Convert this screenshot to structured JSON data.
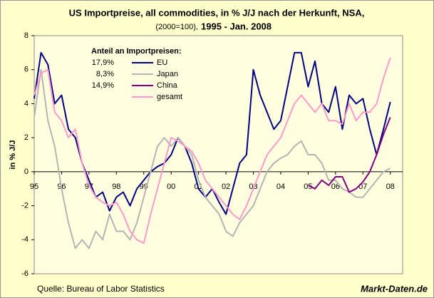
{
  "chart_data": {
    "type": "line",
    "title": "US Importpreise, all commodities, in % J/J nach der Herkunft, NSA,",
    "subtitle": [
      "(2000=100),",
      "1995 - Jan. 2008"
    ],
    "y_label": "in % J/J",
    "legend_title": "Anteil an Importpreisen:",
    "source": "Quelle: Bureau of Labor Statistics",
    "brand": "Markt-Daten.de",
    "x": [
      1995,
      1995.25,
      1995.5,
      1995.75,
      1996,
      1996.25,
      1996.5,
      1996.75,
      1997,
      1997.25,
      1997.5,
      1997.75,
      1998,
      1998.25,
      1998.5,
      1998.75,
      1999,
      1999.25,
      1999.5,
      1999.75,
      2000,
      2000.25,
      2000.5,
      2000.75,
      2001,
      2001.25,
      2001.5,
      2001.75,
      2002,
      2002.25,
      2002.5,
      2002.75,
      2003,
      2003.25,
      2003.5,
      2003.75,
      2004,
      2004.25,
      2004.5,
      2004.75,
      2005,
      2005.25,
      2005.5,
      2005.75,
      2006,
      2006.25,
      2006.5,
      2006.75,
      2007,
      2007.25,
      2007.5,
      2007.75,
      2008
    ],
    "series": [
      {
        "name": "EU",
        "share": "17,9%",
        "color": "#000080",
        "values": [
          4.3,
          7.0,
          6.3,
          4.0,
          4.5,
          2.5,
          2.0,
          0.5,
          -0.5,
          -1.5,
          -1.2,
          -2.3,
          -1.5,
          -1.2,
          -2.0,
          -1.0,
          -0.5,
          0.0,
          0.3,
          0.5,
          1.0,
          2.0,
          1.5,
          0.5,
          -1.0,
          -1.5,
          -1.0,
          -1.8,
          -2.5,
          -1.0,
          0.5,
          1.0,
          6.0,
          4.5,
          3.5,
          2.5,
          3.0,
          5.0,
          7.0,
          7.0,
          5.0,
          6.5,
          4.0,
          3.5,
          5.0,
          2.5,
          4.5,
          4.0,
          4.3,
          2.5,
          1.0,
          2.5,
          4.1
        ]
      },
      {
        "name": "Japan",
        "share": "8,3%",
        "color": "#b4b4b4",
        "values": [
          3.2,
          6.0,
          3.0,
          1.5,
          -1.0,
          -3.0,
          -4.5,
          -4.0,
          -4.5,
          -3.5,
          -4.0,
          -2.5,
          -3.5,
          -3.5,
          -4.0,
          -3.0,
          -1.5,
          0.0,
          1.5,
          2.0,
          1.5,
          2.0,
          1.5,
          1.0,
          -0.5,
          -1.5,
          -2.0,
          -2.5,
          -3.5,
          -3.8,
          -3.0,
          -2.5,
          -2.0,
          -1.0,
          0.0,
          0.5,
          0.8,
          1.0,
          1.5,
          1.8,
          1.0,
          1.0,
          0.5,
          -0.5,
          -0.5,
          -1.0,
          -1.2,
          -1.5,
          -1.5,
          -1.0,
          -0.5,
          0.0,
          0.2
        ]
      },
      {
        "name": "China",
        "share": "14,9%",
        "color": "#800080",
        "values": [
          null,
          null,
          null,
          null,
          null,
          null,
          null,
          null,
          null,
          null,
          null,
          null,
          null,
          null,
          null,
          null,
          null,
          null,
          null,
          null,
          null,
          null,
          null,
          null,
          null,
          null,
          null,
          null,
          null,
          null,
          null,
          null,
          null,
          null,
          null,
          null,
          null,
          null,
          null,
          null,
          -0.8,
          -1.0,
          -0.5,
          -0.8,
          -0.3,
          -0.3,
          -1.2,
          -1.0,
          -0.6,
          0.0,
          1.0,
          2.2,
          3.2
        ]
      },
      {
        "name": "gesamt",
        "color": "#ff99cc",
        "values": [
          4.5,
          5.8,
          6.0,
          3.5,
          3.0,
          2.0,
          2.5,
          0.5,
          -0.8,
          -1.5,
          -1.8,
          -2.0,
          -1.8,
          -2.5,
          -3.5,
          -4.0,
          -4.2,
          -2.5,
          -1.0,
          0.5,
          2.0,
          1.8,
          1.5,
          1.2,
          0.5,
          -0.5,
          -1.0,
          -1.5,
          -2.0,
          -2.5,
          -2.8,
          -2.0,
          -1.0,
          0.0,
          1.0,
          1.5,
          2.0,
          3.0,
          4.0,
          4.5,
          4.0,
          3.5,
          4.0,
          3.0,
          3.0,
          2.8,
          4.0,
          3.0,
          3.5,
          3.5,
          4.0,
          5.5,
          6.7
        ]
      }
    ],
    "xlim": [
      1995,
      2008.45
    ],
    "xticks": [
      {
        "value": 1995,
        "label": "95"
      },
      {
        "value": 1996,
        "label": "96"
      },
      {
        "value": 1997,
        "label": "97"
      },
      {
        "value": 1998,
        "label": "98"
      },
      {
        "value": 1999,
        "label": "99"
      },
      {
        "value": 2000,
        "label": "00"
      },
      {
        "value": 2001,
        "label": "01"
      },
      {
        "value": 2002,
        "label": "02"
      },
      {
        "value": 2003,
        "label": "03"
      },
      {
        "value": 2004,
        "label": "04"
      },
      {
        "value": 2005,
        "label": "05"
      },
      {
        "value": 2006,
        "label": "06"
      },
      {
        "value": 2007,
        "label": "07"
      },
      {
        "value": 2008,
        "label": "08"
      }
    ],
    "ylim": [
      -6,
      8
    ],
    "yticks": [
      -6,
      -4,
      -2,
      0,
      2,
      4,
      6,
      8
    ]
  }
}
